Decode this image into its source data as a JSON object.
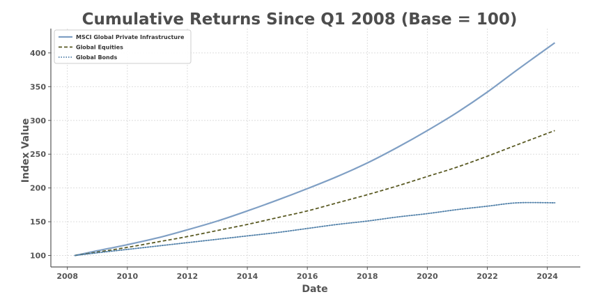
{
  "chart_data": {
    "type": "line",
    "title": "Cumulative Returns Since Q1 2008 (Base = 100)",
    "xlabel": "Date",
    "ylabel": "Index Value",
    "xlim": [
      2007.45,
      2025.1
    ],
    "ylim": [
      83,
      436
    ],
    "xticks": [
      2008,
      2010,
      2012,
      2014,
      2016,
      2018,
      2020,
      2022,
      2024
    ],
    "yticks": [
      100,
      150,
      200,
      250,
      300,
      350,
      400
    ],
    "grid": true,
    "legend_position": "top-left",
    "x": [
      2008.25,
      2009,
      2010,
      2011,
      2012,
      2013,
      2014,
      2015,
      2016,
      2017,
      2018,
      2019,
      2020,
      2021,
      2022,
      2023,
      2024.25
    ],
    "series": [
      {
        "name": "MSCI Global Private Infrastructure",
        "color": "#7f9fc4",
        "style": "solid",
        "values": [
          100,
          107,
          116,
          126,
          138,
          151,
          166,
          182,
          199,
          217,
          237,
          260,
          285,
          312,
          342,
          375,
          415
        ]
      },
      {
        "name": "Global Equities",
        "color": "#5a5a23",
        "style": "dashed",
        "values": [
          100,
          105,
          112,
          120,
          128,
          137,
          146,
          156,
          166,
          178,
          190,
          203,
          217,
          231,
          247,
          264,
          285
        ]
      },
      {
        "name": "Global Bonds",
        "color": "#4f7fa8",
        "style": "dotted",
        "values": [
          100,
          104,
          109,
          114,
          119,
          124,
          129,
          134,
          140,
          146,
          151,
          157,
          162,
          168,
          173,
          178,
          178
        ]
      }
    ]
  }
}
